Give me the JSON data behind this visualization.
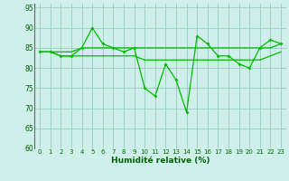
{
  "xlabel": "Humidité relative (%)",
  "x": [
    0,
    1,
    2,
    3,
    4,
    5,
    6,
    7,
    8,
    9,
    10,
    11,
    12,
    13,
    14,
    15,
    16,
    17,
    18,
    19,
    20,
    21,
    22,
    23
  ],
  "line1": [
    84,
    84,
    83,
    83,
    85,
    90,
    86,
    85,
    84,
    85,
    75,
    73,
    81,
    77,
    69,
    88,
    86,
    83,
    83,
    81,
    80,
    85,
    87,
    86
  ],
  "line2": [
    84,
    84,
    83,
    83,
    83,
    83,
    83,
    83,
    83,
    83,
    82,
    82,
    82,
    82,
    82,
    82,
    82,
    82,
    82,
    82,
    82,
    82,
    83,
    84
  ],
  "line3": [
    84,
    84,
    84,
    84,
    85,
    85,
    85,
    85,
    85,
    85,
    85,
    85,
    85,
    85,
    85,
    85,
    85,
    85,
    85,
    85,
    85,
    85,
    85,
    86
  ],
  "line_color": "#00bb00",
  "bg_color": "#cff0ea",
  "grid_color": "#99ccbb",
  "ylim": [
    60,
    96
  ],
  "yticks": [
    60,
    65,
    70,
    75,
    80,
    85,
    90,
    95
  ],
  "xlim": [
    -0.5,
    23.5
  ]
}
